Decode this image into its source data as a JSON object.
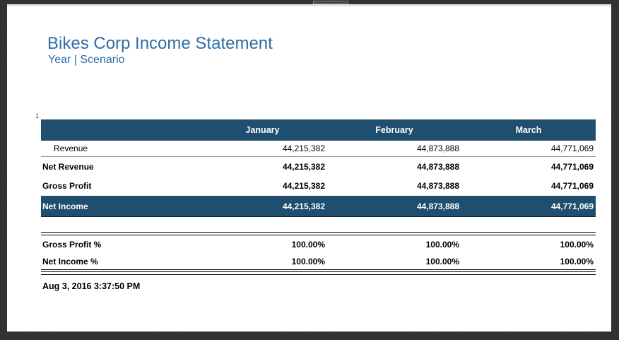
{
  "window": {
    "frame_color": "#323232",
    "top_strip_color": "#e3e3e3"
  },
  "report": {
    "title": "Bikes Corp Income Statement",
    "subtitle": "Year | Scenario",
    "page_marker": "1",
    "title_color": "#2E6DA4",
    "header_bg_color": "#1F4E6E",
    "columns": {
      "jan": "January",
      "feb": "February",
      "mar": "March"
    },
    "rows": {
      "revenue": {
        "label": "Revenue",
        "jan": "44,215,382",
        "feb": "44,873,888",
        "mar": "44,771,069"
      },
      "net_revenue": {
        "label": "Net Revenue",
        "jan": "44,215,382",
        "feb": "44,873,888",
        "mar": "44,771,069"
      },
      "gross_profit": {
        "label": "Gross Profit",
        "jan": "44,215,382",
        "feb": "44,873,888",
        "mar": "44,771,069"
      },
      "net_income": {
        "label": "Net Income",
        "jan": "44,215,382",
        "feb": "44,873,888",
        "mar": "44,771,069"
      },
      "gross_profit_pct": {
        "label": "Gross Profit %",
        "jan": "100.00%",
        "feb": "100.00%",
        "mar": "100.00%"
      },
      "net_income_pct": {
        "label": "Net Income %",
        "jan": "100.00%",
        "feb": "100.00%",
        "mar": "100.00%"
      }
    },
    "timestamp": "Aug 3, 2016 3:37:50 PM"
  }
}
